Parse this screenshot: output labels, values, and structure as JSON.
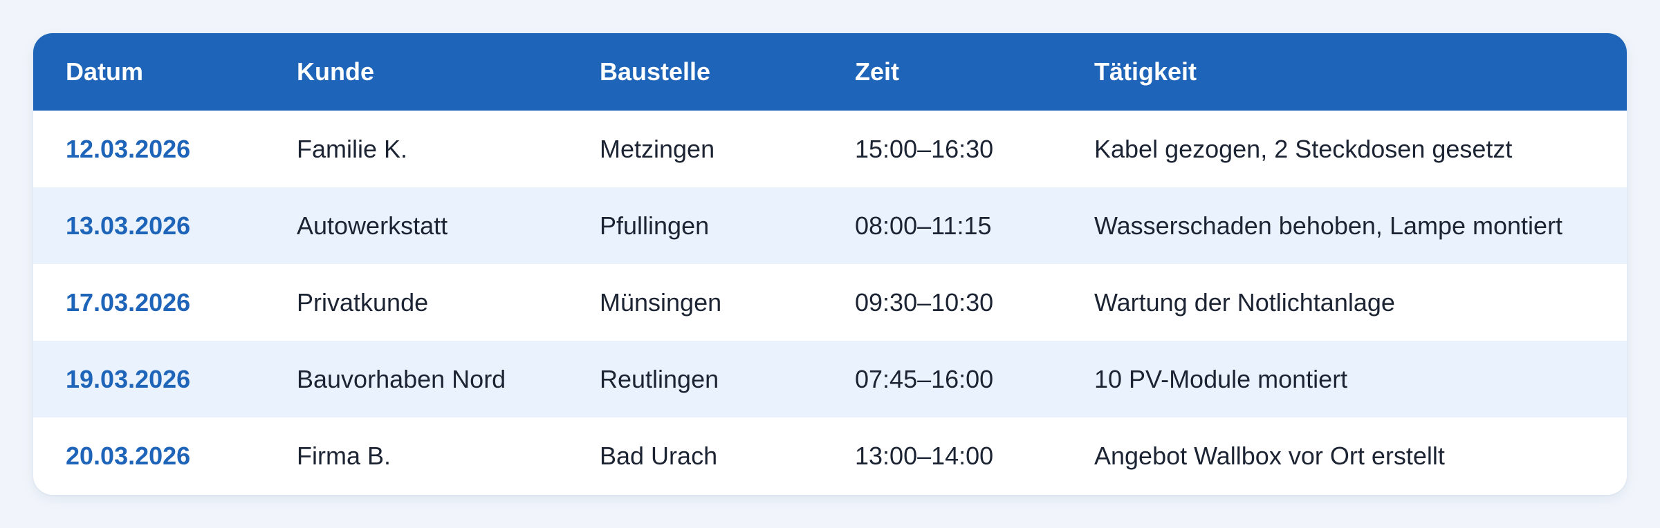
{
  "colors": {
    "page_background": "#f1f5fb",
    "header_background": "#1e64b8",
    "header_text": "#ffffff",
    "date_text": "#1e64b8",
    "body_text": "#1c2433",
    "alt_row_background": "#eaf3fd",
    "row_background": "#ffffff"
  },
  "table": {
    "headers": {
      "datum": "Datum",
      "kunde": "Kunde",
      "baustelle": "Baustelle",
      "zeit": "Zeit",
      "taetigkeit": "Tätigkeit"
    },
    "rows": [
      {
        "datum": "12.03.2026",
        "kunde": "Familie K.",
        "baustelle": "Metzingen",
        "zeit": "15:00–16:30",
        "taetigkeit": "Kabel gezogen, 2 Steckdosen gesetzt"
      },
      {
        "datum": "13.03.2026",
        "kunde": "Autowerkstatt",
        "baustelle": "Pfullingen",
        "zeit": "08:00–11:15",
        "taetigkeit": "Wasserschaden behoben, Lampe montiert"
      },
      {
        "datum": "17.03.2026",
        "kunde": "Privatkunde",
        "baustelle": "Münsingen",
        "zeit": "09:30–10:30",
        "taetigkeit": "Wartung der Notlichtanlage"
      },
      {
        "datum": "19.03.2026",
        "kunde": "Bauvorhaben Nord",
        "baustelle": "Reutlingen",
        "zeit": "07:45–16:00",
        "taetigkeit": "10 PV-Module montiert"
      },
      {
        "datum": "20.03.2026",
        "kunde": "Firma B.",
        "baustelle": "Bad Urach",
        "zeit": "13:00–14:00",
        "taetigkeit": "Angebot Wallbox vor Ort erstellt"
      }
    ]
  }
}
